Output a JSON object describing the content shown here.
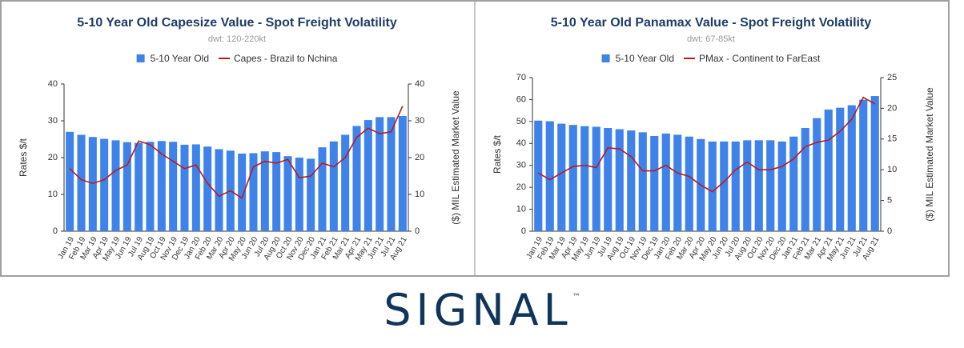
{
  "chart_data": [
    {
      "type": "bar-line",
      "title": "5-10 Year Old Capesize Value - Spot Freight Volatility",
      "subtitle": "dwt: 120-220kt",
      "categories": [
        "Jan 19",
        "Feb 19",
        "Mar 19",
        "Apr 19",
        "May 19",
        "Jun 19",
        "Jul 19",
        "Aug 19",
        "Oct 19",
        "Nov 19",
        "Dec 19",
        "Jan 20",
        "Feb 20",
        "Mar 20",
        "Apr 20",
        "May 20",
        "Jun 20",
        "Jul 20",
        "Aug 20",
        "Oct 20",
        "Nov 20",
        "Dec 20",
        "Jan 21",
        "Feb 21",
        "Mar 21",
        "Apr 21",
        "May 21",
        "Jun 21",
        "Jul 21",
        "Aug 21"
      ],
      "series": [
        {
          "name": "5-10 Year Old",
          "kind": "bar",
          "axis": "y2",
          "color": "#3f83ea",
          "values": [
            27,
            26.2,
            25.6,
            25.1,
            24.7,
            24.2,
            24.0,
            24.3,
            24.5,
            24.3,
            23.5,
            23.6,
            23.0,
            22.3,
            21.9,
            21.1,
            21.2,
            21.7,
            21.5,
            20.4,
            20.0,
            19.7,
            22.8,
            24.4,
            26.2,
            28.6,
            30.2,
            31.0,
            31.0,
            31.3
          ]
        },
        {
          "name": "Capes - Brazil to Nchina",
          "kind": "line",
          "axis": "y",
          "color": "#b71c1c",
          "values": [
            17,
            14,
            13,
            14,
            16.5,
            18,
            24.5,
            23.5,
            21,
            19,
            17,
            18,
            13,
            9.5,
            11,
            9,
            17.5,
            19,
            18.5,
            19.5,
            14.5,
            15,
            18.5,
            17.5,
            20,
            25.5,
            28,
            26.5,
            27,
            34
          ]
        }
      ],
      "ylabel": "Rates $/t",
      "y2label": "($) MIL Estimated Market Value",
      "ylim": [
        0,
        40
      ],
      "yticks": [
        0,
        10,
        20,
        30,
        40
      ],
      "y2lim": [
        0,
        40
      ],
      "y2ticks": [
        0,
        10,
        20,
        30,
        40
      ],
      "grid": false,
      "legend": "top"
    },
    {
      "type": "bar-line",
      "title": "5-10 Year Old Panamax Value - Spot Freight Volatility",
      "subtitle": "dwt: 67-85kt",
      "categories": [
        "Jan 19",
        "Feb 19",
        "Mar 19",
        "Apr 19",
        "May 19",
        "Jun 19",
        "Jul 19",
        "Aug 19",
        "Oct 19",
        "Nov 19",
        "Dec 19",
        "Jan 20",
        "Feb 20",
        "Mar 20",
        "Apr 20",
        "May 20",
        "Jun 20",
        "Jul 20",
        "Aug 20",
        "Oct 20",
        "Nov 20",
        "Dec 20",
        "Jan 21",
        "Feb 21",
        "Mar 21",
        "Apr 21",
        "May 21",
        "Jun 21",
        "Jul 21",
        "Aug 21"
      ],
      "series": [
        {
          "name": "5-10 Year Old",
          "kind": "bar",
          "axis": "y2",
          "color": "#3f83ea",
          "values": [
            18.0,
            17.9,
            17.5,
            17.3,
            17.1,
            17.0,
            16.8,
            16.6,
            16.4,
            16.1,
            15.5,
            15.9,
            15.7,
            15.4,
            15.0,
            14.6,
            14.6,
            14.6,
            14.8,
            14.8,
            14.8,
            14.6,
            15.4,
            16.8,
            18.4,
            19.8,
            20.1,
            20.5,
            21.4,
            22.0
          ]
        },
        {
          "name": "PMax - Continent to FarEast",
          "kind": "line",
          "axis": "y",
          "color": "#b71c1c",
          "values": [
            26.5,
            23.5,
            26.5,
            29.5,
            30,
            29,
            38,
            37.5,
            34,
            27.5,
            27.5,
            30,
            26.5,
            25,
            21,
            18,
            22.5,
            28,
            31.5,
            28,
            28,
            29.5,
            33,
            38.5,
            40.5,
            41.5,
            45.5,
            51,
            61,
            58
          ]
        }
      ],
      "ylabel": "Rates $/t",
      "y2label": "($) MIL Estimated Market Value",
      "ylim": [
        0,
        70
      ],
      "yticks": [
        0,
        10,
        20,
        30,
        40,
        50,
        60,
        70
      ],
      "y2lim": [
        0,
        25
      ],
      "y2ticks": [
        0,
        5,
        10,
        15,
        20,
        25
      ],
      "grid": false,
      "legend": "top"
    }
  ],
  "logo": {
    "name": "SIGNAL",
    "mark": "™"
  }
}
